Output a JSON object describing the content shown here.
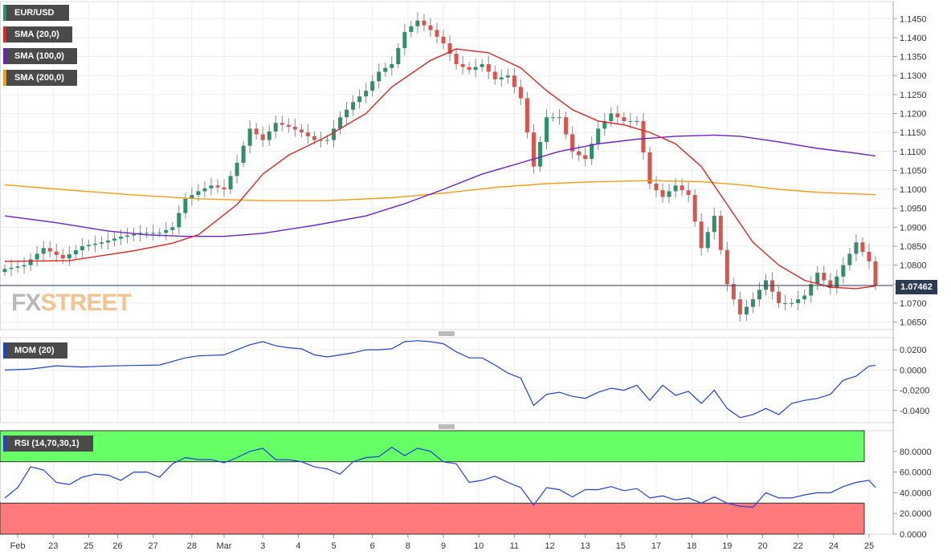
{
  "symbol": "EUR/USD",
  "price_label": "1.07462",
  "logo": {
    "part1": "FX",
    "part2": "STREET"
  },
  "colors": {
    "up": "#2f8f6b",
    "down": "#d9534f",
    "sma20": "#e02424",
    "sma100": "#6a1fc9",
    "sma200": "#f39c12",
    "mom": "#1f3fd6",
    "rsi": "#1f3fd6",
    "overbought": "#66ff66",
    "oversold": "#ff7b7b"
  },
  "legends": {
    "main": [
      {
        "label": "EUR/USD",
        "color": "#2f8f6b"
      },
      {
        "label": "SMA (20,0)",
        "color": "#e02424"
      },
      {
        "label": "SMA (100,0)",
        "color": "#6a1fc9"
      },
      {
        "label": "SMA (200,0)",
        "color": "#f39c12"
      }
    ],
    "mom": {
      "label": "MOM (20)",
      "color": "#1f3fd6"
    },
    "rsi": {
      "label": "RSI (14,70,30,1)",
      "color": "#1f3fd6"
    }
  },
  "chart_data": [
    {
      "type": "candlestick",
      "title": "EUR/USD",
      "ylim": [
        1.063,
        1.1495
      ],
      "y_ticks": [
        "1.0650",
        "1.0700",
        "1.0750",
        "1.0800",
        "1.0850",
        "1.0900",
        "1.0950",
        "1.1000",
        "1.1050",
        "1.1100",
        "1.1150",
        "1.1200",
        "1.1250",
        "1.1300",
        "1.1350",
        "1.1400",
        "1.1450"
      ],
      "x_labels": [
        "Feb",
        "23",
        "25",
        "26",
        "27",
        "28",
        "Mar",
        "3",
        "4",
        "5",
        "6",
        "8",
        "9",
        "10",
        "11",
        "12",
        "13",
        "15",
        "17",
        "18",
        "19",
        "20",
        "22",
        "24",
        "25"
      ],
      "current_price": 1.07462,
      "close_path": [
        [
          0,
          1.079
        ],
        [
          3,
          1.08
        ],
        [
          6,
          1.0845
        ],
        [
          9,
          1.0818
        ],
        [
          12,
          1.085
        ],
        [
          15,
          1.086
        ],
        [
          18,
          1.0875
        ],
        [
          21,
          1.0885
        ],
        [
          24,
          1.0885
        ],
        [
          26,
          1.09
        ],
        [
          28,
          1.0975
        ],
        [
          30,
          1.0995
        ],
        [
          32,
          1.101
        ],
        [
          34,
          1.1
        ],
        [
          36,
          1.107
        ],
        [
          38,
          1.116
        ],
        [
          40,
          1.113
        ],
        [
          42,
          1.1175
        ],
        [
          44,
          1.1165
        ],
        [
          46,
          1.115
        ],
        [
          48,
          1.113
        ],
        [
          50,
          1.113
        ],
        [
          52,
          1.119
        ],
        [
          54,
          1.123
        ],
        [
          56,
          1.126
        ],
        [
          58,
          1.131
        ],
        [
          60,
          1.133
        ],
        [
          62,
          1.1415
        ],
        [
          64,
          1.1445
        ],
        [
          66,
          1.142
        ],
        [
          68,
          1.1385
        ],
        [
          70,
          1.133
        ],
        [
          72,
          1.1315
        ],
        [
          74,
          1.133
        ],
        [
          76,
          1.129
        ],
        [
          78,
          1.13
        ],
        [
          80,
          1.124
        ],
        [
          82,
          1.106
        ],
        [
          84,
          1.119
        ],
        [
          86,
          1.119
        ],
        [
          88,
          1.11
        ],
        [
          90,
          1.108
        ],
        [
          92,
          1.116
        ],
        [
          94,
          1.12
        ],
        [
          96,
          1.118
        ],
        [
          98,
          1.118
        ],
        [
          100,
          1.1015
        ],
        [
          102,
          1.098
        ],
        [
          104,
          1.101
        ],
        [
          106,
          1.0985
        ],
        [
          108,
          1.0845
        ],
        [
          110,
          1.093
        ],
        [
          112,
          1.075
        ],
        [
          114,
          1.067
        ],
        [
          116,
          1.071
        ],
        [
          118,
          1.076
        ],
        [
          120,
          1.07
        ],
        [
          122,
          1.07
        ],
        [
          124,
          1.072
        ],
        [
          126,
          1.078
        ],
        [
          128,
          1.074
        ],
        [
          130,
          1.08
        ],
        [
          132,
          1.086
        ],
        [
          134,
          1.081
        ],
        [
          135,
          1.07462
        ]
      ],
      "sma20": [
        [
          0,
          1.081
        ],
        [
          10,
          1.0812
        ],
        [
          20,
          1.0838
        ],
        [
          26,
          1.0858
        ],
        [
          30,
          1.088
        ],
        [
          36,
          1.096
        ],
        [
          40,
          1.104
        ],
        [
          44,
          1.109
        ],
        [
          50,
          1.114
        ],
        [
          56,
          1.12
        ],
        [
          60,
          1.127
        ],
        [
          66,
          1.134
        ],
        [
          70,
          1.137
        ],
        [
          75,
          1.136
        ],
        [
          80,
          1.132
        ],
        [
          84,
          1.126
        ],
        [
          88,
          1.121
        ],
        [
          92,
          1.118
        ],
        [
          96,
          1.117
        ],
        [
          100,
          1.115
        ],
        [
          104,
          1.112
        ],
        [
          108,
          1.106
        ],
        [
          112,
          1.096
        ],
        [
          116,
          1.086
        ],
        [
          120,
          1.08
        ],
        [
          124,
          1.076
        ],
        [
          128,
          1.0742
        ],
        [
          132,
          1.0738
        ],
        [
          135,
          1.0745
        ]
      ],
      "sma100": [
        [
          0,
          1.093
        ],
        [
          8,
          1.0912
        ],
        [
          16,
          1.089
        ],
        [
          22,
          1.088
        ],
        [
          28,
          1.0876
        ],
        [
          34,
          1.0876
        ],
        [
          40,
          1.0884
        ],
        [
          48,
          1.0905
        ],
        [
          56,
          1.093
        ],
        [
          62,
          1.0962
        ],
        [
          68,
          1.1
        ],
        [
          74,
          1.104
        ],
        [
          80,
          1.107
        ],
        [
          86,
          1.11
        ],
        [
          92,
          1.112
        ],
        [
          98,
          1.1132
        ],
        [
          104,
          1.114
        ],
        [
          110,
          1.1143
        ],
        [
          114,
          1.114
        ],
        [
          120,
          1.1125
        ],
        [
          126,
          1.1108
        ],
        [
          132,
          1.1095
        ],
        [
          135,
          1.1088
        ]
      ],
      "sma200": [
        [
          0,
          1.1012
        ],
        [
          10,
          1.0998
        ],
        [
          20,
          1.0985
        ],
        [
          30,
          1.0975
        ],
        [
          40,
          1.097
        ],
        [
          50,
          1.097
        ],
        [
          60,
          1.0978
        ],
        [
          68,
          1.099
        ],
        [
          76,
          1.1005
        ],
        [
          84,
          1.1015
        ],
        [
          92,
          1.102
        ],
        [
          100,
          1.1023
        ],
        [
          108,
          1.102
        ],
        [
          114,
          1.1012
        ],
        [
          120,
          1.1
        ],
        [
          126,
          1.0992
        ],
        [
          135,
          1.0986
        ]
      ]
    },
    {
      "type": "line",
      "title": "MOM (20)",
      "ylim": [
        -0.052,
        0.032
      ],
      "y_ticks": [
        "0.0200",
        "0.0000",
        "-0.0200",
        "-0.0400"
      ],
      "values": [
        [
          0,
          0.0
        ],
        [
          4,
          0.001
        ],
        [
          8,
          0.0042
        ],
        [
          12,
          0.003
        ],
        [
          16,
          0.004
        ],
        [
          20,
          0.0045
        ],
        [
          24,
          0.005
        ],
        [
          28,
          0.012
        ],
        [
          30,
          0.014
        ],
        [
          34,
          0.015
        ],
        [
          36,
          0.02
        ],
        [
          38,
          0.025
        ],
        [
          40,
          0.028
        ],
        [
          42,
          0.024
        ],
        [
          44,
          0.022
        ],
        [
          46,
          0.021
        ],
        [
          48,
          0.015
        ],
        [
          50,
          0.013
        ],
        [
          52,
          0.015
        ],
        [
          54,
          0.017
        ],
        [
          56,
          0.02
        ],
        [
          58,
          0.02
        ],
        [
          60,
          0.021
        ],
        [
          62,
          0.028
        ],
        [
          64,
          0.029
        ],
        [
          66,
          0.028
        ],
        [
          68,
          0.026
        ],
        [
          70,
          0.018
        ],
        [
          72,
          0.012
        ],
        [
          74,
          0.012
        ],
        [
          76,
          0.005
        ],
        [
          78,
          -0.003
        ],
        [
          80,
          -0.008
        ],
        [
          82,
          -0.035
        ],
        [
          84,
          -0.024
        ],
        [
          86,
          -0.022
        ],
        [
          88,
          -0.026
        ],
        [
          90,
          -0.028
        ],
        [
          92,
          -0.022
        ],
        [
          94,
          -0.018
        ],
        [
          96,
          -0.02
        ],
        [
          98,
          -0.015
        ],
        [
          100,
          -0.03
        ],
        [
          102,
          -0.015
        ],
        [
          104,
          -0.025
        ],
        [
          106,
          -0.021
        ],
        [
          108,
          -0.033
        ],
        [
          110,
          -0.02
        ],
        [
          112,
          -0.038
        ],
        [
          114,
          -0.047
        ],
        [
          116,
          -0.044
        ],
        [
          118,
          -0.038
        ],
        [
          120,
          -0.044
        ],
        [
          122,
          -0.033
        ],
        [
          124,
          -0.03
        ],
        [
          126,
          -0.028
        ],
        [
          128,
          -0.024
        ],
        [
          130,
          -0.01
        ],
        [
          132,
          -0.006
        ],
        [
          134,
          0.004
        ],
        [
          135,
          0.0045
        ]
      ]
    },
    {
      "type": "line",
      "title": "RSI (14,70,30,1)",
      "ylim": [
        0,
        100
      ],
      "y_ticks": [
        "80.0000",
        "60.0000",
        "40.0000",
        "20.0000",
        "0.0000"
      ],
      "bands": {
        "overbought": 70,
        "oversold": 30
      },
      "values": [
        [
          0,
          35
        ],
        [
          2,
          45
        ],
        [
          4,
          65
        ],
        [
          6,
          62
        ],
        [
          8,
          50
        ],
        [
          10,
          48
        ],
        [
          12,
          55
        ],
        [
          14,
          58
        ],
        [
          16,
          57
        ],
        [
          18,
          52
        ],
        [
          20,
          60
        ],
        [
          22,
          60
        ],
        [
          24,
          55
        ],
        [
          26,
          68
        ],
        [
          28,
          74
        ],
        [
          30,
          72
        ],
        [
          32,
          72
        ],
        [
          34,
          69
        ],
        [
          36,
          74
        ],
        [
          38,
          80
        ],
        [
          40,
          83
        ],
        [
          42,
          72
        ],
        [
          44,
          72
        ],
        [
          46,
          70
        ],
        [
          48,
          65
        ],
        [
          50,
          63
        ],
        [
          52,
          58
        ],
        [
          54,
          70
        ],
        [
          56,
          74
        ],
        [
          58,
          75
        ],
        [
          60,
          84
        ],
        [
          62,
          76
        ],
        [
          64,
          83
        ],
        [
          66,
          80
        ],
        [
          68,
          70
        ],
        [
          70,
          68
        ],
        [
          72,
          50
        ],
        [
          74,
          52
        ],
        [
          76,
          56
        ],
        [
          78,
          50
        ],
        [
          80,
          45
        ],
        [
          82,
          28
        ],
        [
          84,
          45
        ],
        [
          86,
          43
        ],
        [
          88,
          36
        ],
        [
          90,
          43
        ],
        [
          92,
          43
        ],
        [
          94,
          46
        ],
        [
          96,
          42
        ],
        [
          98,
          44
        ],
        [
          100,
          35
        ],
        [
          102,
          37
        ],
        [
          104,
          33
        ],
        [
          106,
          35
        ],
        [
          108,
          30
        ],
        [
          110,
          36
        ],
        [
          112,
          30
        ],
        [
          114,
          27
        ],
        [
          116,
          26
        ],
        [
          118,
          40
        ],
        [
          120,
          35
        ],
        [
          122,
          35
        ],
        [
          124,
          38
        ],
        [
          126,
          40
        ],
        [
          128,
          40
        ],
        [
          130,
          46
        ],
        [
          132,
          50
        ],
        [
          134,
          52
        ],
        [
          135,
          45
        ]
      ]
    }
  ]
}
